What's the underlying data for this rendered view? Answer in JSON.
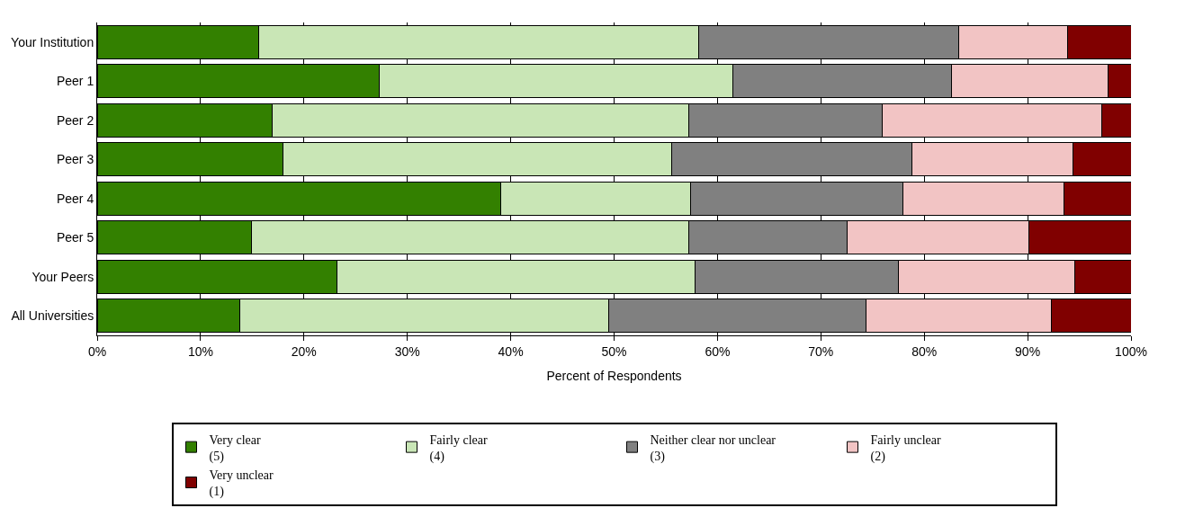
{
  "chart_data": {
    "type": "bar",
    "orientation": "horizontal",
    "stacked": true,
    "xlabel": "Percent of Respondents",
    "categories": [
      "Your Institution",
      "Peer 1",
      "Peer 2",
      "Peer 3",
      "Peer 4",
      "Peer 5",
      "Your Peers",
      "All Universities"
    ],
    "series": [
      {
        "name": "Very clear\n(5)",
        "color": "#338000",
        "values": [
          15.6,
          27.3,
          16.9,
          18.0,
          39.0,
          14.9,
          23.2,
          13.8
        ]
      },
      {
        "name": "Fairly clear\n(4)",
        "color": "#c9e6b6",
        "values": [
          42.6,
          34.2,
          40.3,
          37.6,
          18.4,
          42.3,
          34.6,
          35.7
        ]
      },
      {
        "name": "Neither clear nor unclear\n(3)",
        "color": "#808080",
        "values": [
          25.1,
          21.1,
          18.7,
          23.2,
          20.5,
          15.3,
          19.7,
          24.9
        ]
      },
      {
        "name": "Fairly unclear\n(2)",
        "color": "#f2c4c4",
        "values": [
          10.6,
          15.2,
          21.3,
          15.6,
          15.6,
          17.6,
          17.1,
          17.9
        ]
      },
      {
        "name": "Very unclear\n(1)",
        "color": "#800000",
        "values": [
          6.1,
          2.2,
          2.8,
          5.6,
          6.5,
          9.9,
          5.4,
          7.7
        ]
      }
    ],
    "xlim": [
      0,
      100
    ],
    "xticks": [
      {
        "value": 0,
        "label": "0%"
      },
      {
        "value": 10,
        "label": "10%"
      },
      {
        "value": 20,
        "label": "20%"
      },
      {
        "value": 30,
        "label": "30%"
      },
      {
        "value": 40,
        "label": "40%"
      },
      {
        "value": 50,
        "label": "50%"
      },
      {
        "value": 60,
        "label": "60%"
      },
      {
        "value": 70,
        "label": "70%"
      },
      {
        "value": 80,
        "label": "80%"
      },
      {
        "value": 90,
        "label": "90%"
      },
      {
        "value": 100,
        "label": "100%"
      }
    ],
    "grid": "x",
    "legend": "bottom"
  }
}
